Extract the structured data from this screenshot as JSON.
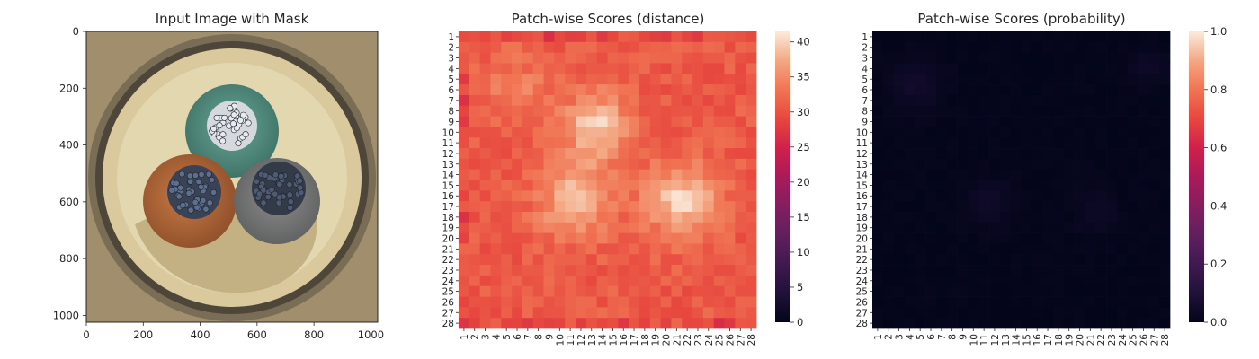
{
  "chart_data": [
    {
      "type": "image",
      "title": "Input Image with Mask",
      "xticks": [
        0,
        200,
        400,
        600,
        800,
        1000
      ],
      "yticks": [
        0,
        200,
        400,
        600,
        800,
        1000
      ],
      "xlim": [
        0,
        1024
      ],
      "ylim": [
        1024,
        0
      ],
      "image_content": "cable cross-section",
      "colors": {
        "background": "#9c8a6a",
        "ring_outer": "#6b604d",
        "ring_inner": "#ddd0a8",
        "filler": "#c8b88f",
        "green_core": "#4f8c7f",
        "brown_core": "#b86a3a",
        "gray_core": "#7a7a78",
        "strands": "#2a3040"
      }
    },
    {
      "type": "heatmap",
      "title": "Patch-wise Scores (distance)",
      "rows": 28,
      "cols": 28,
      "row_labels": [
        "1",
        "2",
        "3",
        "4",
        "5",
        "6",
        "7",
        "8",
        "9",
        "10",
        "11",
        "12",
        "13",
        "14",
        "15",
        "16",
        "17",
        "18",
        "19",
        "20",
        "21",
        "22",
        "23",
        "24",
        "25",
        "26",
        "27",
        "28"
      ],
      "col_labels": [
        "1",
        "2",
        "3",
        "4",
        "5",
        "6",
        "7",
        "8",
        "9",
        "10",
        "11",
        "12",
        "13",
        "14",
        "15",
        "16",
        "17",
        "18",
        "19",
        "20",
        "21",
        "22",
        "23",
        "24",
        "25",
        "26",
        "27",
        "28"
      ],
      "colorbar_ticks": [
        0,
        5,
        10,
        15,
        20,
        25,
        30,
        35,
        40
      ],
      "vmin": 0,
      "vmax": 41.5,
      "colormap": "rocket",
      "summary": {
        "min": 24,
        "max": 41,
        "hotspots": [
          {
            "row": 9,
            "col": 13,
            "value": 39
          },
          {
            "row": 16,
            "col": 11,
            "value": 38
          },
          {
            "row": 16,
            "col": 21,
            "value": 40
          }
        ]
      }
    },
    {
      "type": "heatmap",
      "title": "Patch-wise Scores (probability)",
      "rows": 28,
      "cols": 28,
      "row_labels": [
        "1",
        "2",
        "3",
        "4",
        "5",
        "6",
        "7",
        "8",
        "9",
        "10",
        "11",
        "12",
        "13",
        "14",
        "15",
        "16",
        "17",
        "18",
        "19",
        "20",
        "21",
        "22",
        "23",
        "24",
        "25",
        "26",
        "27",
        "28"
      ],
      "col_labels": [
        "1",
        "2",
        "3",
        "4",
        "5",
        "6",
        "7",
        "8",
        "9",
        "10",
        "11",
        "12",
        "13",
        "14",
        "15",
        "16",
        "17",
        "18",
        "19",
        "20",
        "21",
        "22",
        "23",
        "24",
        "25",
        "26",
        "27",
        "28"
      ],
      "colorbar_ticks": [
        "0.0",
        "0.2",
        "0.4",
        "0.6",
        "0.8",
        "1.0"
      ],
      "vmin": 0.0,
      "vmax": 1.0,
      "colormap": "rocket",
      "summary": {
        "min": 0.0,
        "max": 0.06
      }
    }
  ]
}
